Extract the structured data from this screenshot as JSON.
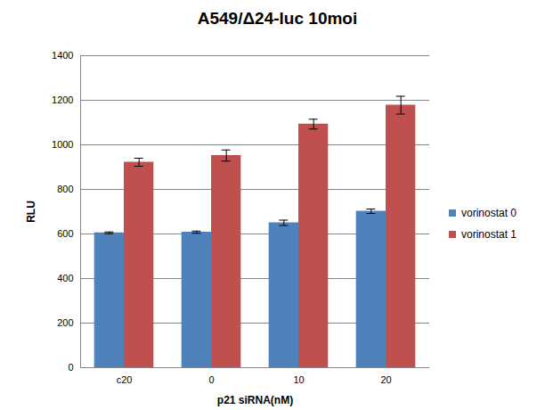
{
  "chart_data": {
    "type": "bar",
    "title": "A549/Δ24-luc 10moi",
    "x_label": "p21 siRNA(nM)",
    "y_label": "RLU",
    "categories": [
      "c20",
      "0",
      "10",
      "20"
    ],
    "series": [
      {
        "name": "vorinostat 0",
        "color": "#4f81bd",
        "values": [
          605,
          608,
          650,
          702
        ],
        "errors": [
          4,
          5,
          12,
          10
        ]
      },
      {
        "name": "vorinostat 1",
        "color": "#c0504d",
        "values": [
          922,
          952,
          1093,
          1178
        ],
        "errors": [
          18,
          25,
          22,
          40
        ]
      }
    ],
    "ylim": [
      0,
      1400
    ],
    "yticks": [
      0,
      200,
      400,
      600,
      800,
      1000,
      1200,
      1400
    ],
    "grid": true,
    "legend": "right"
  }
}
